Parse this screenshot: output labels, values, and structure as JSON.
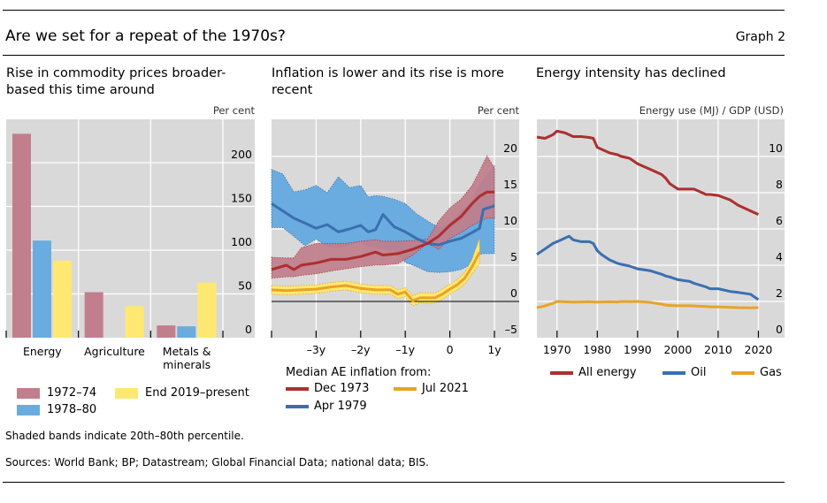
{
  "header": {
    "title": "Are we set for a repeat of the 1970s?",
    "graph_number": "Graph 2"
  },
  "footer": {
    "note": "Shaded bands indicate 20th–80th percentile.",
    "sources": "Sources: World Bank; BP; Datastream; Global Financial Data; national data; BIS."
  },
  "colors": {
    "plot_bg": "#d9d9d9",
    "pink": "#c17e8c",
    "light_blue": "#6aacdf",
    "light_yellow": "#ffe872",
    "dark_red": "#ad2f2f",
    "dark_blue": "#3a6fb0",
    "orange": "#e9a326",
    "red_band": "#c17e8c",
    "blue_band": "#6aacdf",
    "yellow_band": "#ffe872"
  },
  "chart_data": [
    {
      "type": "bar",
      "title": "Rise in commodity prices broader-based this time around",
      "title_lines": [
        "Rise in commodity prices broader-",
        "based this time around"
      ],
      "ylabel": "Per cent",
      "xlabel": "",
      "ylim": [
        0,
        230
      ],
      "yticks": [
        0,
        50,
        100,
        150,
        200
      ],
      "ytick_labels": [
        "0",
        "50",
        "100",
        "150",
        "200"
      ],
      "grid": true,
      "categories": [
        "Energy",
        "Agriculture",
        "Metals & minerals"
      ],
      "category_labels": [
        [
          "Energy"
        ],
        [
          "Agriculture"
        ],
        [
          "Metals &",
          "minerals"
        ]
      ],
      "series": [
        {
          "name": "1972–74",
          "color": "#c17e8c",
          "values": [
            233,
            52,
            14
          ]
        },
        {
          "name": "1978–80",
          "color": "#6aacdf",
          "values": [
            111,
            null,
            13
          ]
        },
        {
          "name": "End 2019–present",
          "color": "#ffe872",
          "values": [
            88,
            36,
            63
          ]
        }
      ],
      "legend": "bottom"
    },
    {
      "type": "line",
      "title": "Inflation is lower and its rise is more recent",
      "title_lines": [
        "Inflation is lower and its rise is more",
        "recent"
      ],
      "ylabel": "Per cent",
      "xlabel": "",
      "xunit": "months relative to start",
      "xlim": [
        -48,
        12
      ],
      "xticks": [
        -36,
        -24,
        -12,
        0,
        12
      ],
      "xtick_labels": [
        "–3y",
        "–2y",
        "–1y",
        "0",
        "1y"
      ],
      "ylim": [
        -5,
        23
      ],
      "yticks": [
        -5,
        0,
        5,
        10,
        15,
        20
      ],
      "ytick_labels": [
        "–5",
        "0",
        "5",
        "10",
        "15",
        "20"
      ],
      "grid": true,
      "legend_title": "Median AE inflation from:",
      "legend": "bottom",
      "series": [
        {
          "name": "Dec 1973",
          "color": "#ad2f2f",
          "band_color": "#c17e8c",
          "x": [
            -48,
            -44,
            -42,
            -40,
            -36,
            -32,
            -28,
            -24,
            -20,
            -18,
            -14,
            -10,
            -6,
            -3,
            0,
            3,
            6,
            8,
            10,
            12
          ],
          "median": [
            4.4,
            5.0,
            4.4,
            5.0,
            5.3,
            5.8,
            5.8,
            6.2,
            6.8,
            6.4,
            6.6,
            7.2,
            8.0,
            9.0,
            10.5,
            11.7,
            13.5,
            14.5,
            15.1,
            15.1
          ],
          "p20": [
            3.2,
            3.4,
            3.4,
            3.6,
            3.8,
            4.2,
            4.5,
            4.8,
            5.0,
            5.0,
            5.2,
            6.4,
            8.0,
            7.2,
            8.7,
            9.5,
            10.5,
            11.0,
            11.5,
            11.5
          ],
          "p80": [
            6.1,
            6.0,
            6.0,
            7.4,
            8.0,
            8.0,
            8.0,
            8.3,
            8.5,
            8.3,
            8.3,
            8.4,
            8.6,
            11.1,
            12.9,
            14.1,
            16.0,
            18.0,
            20.1,
            18.4
          ]
        },
        {
          "name": "Apr 1979",
          "color": "#3a6fb0",
          "band_color": "#6aacdf",
          "x": [
            -48,
            -45,
            -42,
            -39,
            -36,
            -33,
            -30,
            -27,
            -24,
            -22,
            -20,
            -18,
            -15,
            -12,
            -9,
            -6,
            -3,
            0,
            3,
            6,
            8,
            9,
            12
          ],
          "median": [
            13.5,
            12.5,
            11.5,
            10.8,
            10.1,
            10.6,
            9.6,
            10.0,
            10.5,
            9.6,
            9.9,
            12.0,
            10.3,
            9.6,
            8.7,
            8.0,
            7.8,
            8.3,
            8.7,
            9.5,
            10.1,
            12.7,
            13.2
          ],
          "p20": [
            10.2,
            10.2,
            9.0,
            7.7,
            8.6,
            7.6,
            7.4,
            7.8,
            8.3,
            7.6,
            7.5,
            7.2,
            7.1,
            5.4,
            4.8,
            4.1,
            4.0,
            4.1,
            4.4,
            5.2,
            6.5,
            6.6,
            6.6
          ],
          "p80": [
            18.2,
            17.6,
            15.1,
            15.4,
            16.0,
            15.0,
            17.2,
            15.7,
            16.0,
            14.4,
            14.6,
            14.5,
            14.1,
            13.5,
            12.1,
            11.1,
            10.2,
            10.8,
            12.5,
            13.9,
            16.0,
            16.8,
            18.7
          ]
        },
        {
          "name": "Jul 2021",
          "color": "#e9a326",
          "band_color": "#ffe872",
          "x": [
            -48,
            -44,
            -40,
            -36,
            -32,
            -28,
            -24,
            -20,
            -16,
            -14,
            -12,
            -10,
            -8,
            -6,
            -4,
            -2,
            0,
            2,
            4,
            6,
            8
          ],
          "median": [
            1.6,
            1.5,
            1.6,
            1.7,
            2.0,
            2.2,
            1.8,
            1.6,
            1.6,
            1.0,
            1.3,
            0.1,
            0.5,
            0.5,
            0.5,
            1.0,
            1.7,
            2.3,
            3.2,
            4.8,
            6.8
          ],
          "p20": [
            1.0,
            0.9,
            1.0,
            1.1,
            1.4,
            1.6,
            1.2,
            1.0,
            1.0,
            0.4,
            0.7,
            -0.6,
            -0.2,
            -0.3,
            -0.2,
            0.3,
            1.0,
            1.6,
            2.4,
            3.8,
            5.2
          ],
          "p80": [
            2.2,
            2.1,
            2.2,
            2.3,
            2.6,
            2.8,
            2.4,
            2.2,
            2.2,
            1.6,
            1.9,
            0.8,
            1.2,
            1.2,
            1.2,
            1.7,
            2.4,
            3.0,
            4.0,
            5.8,
            8.7
          ]
        }
      ]
    },
    {
      "type": "line",
      "title": "Energy intensity has declined",
      "title_lines": [
        "Energy intensity has declined"
      ],
      "ylabel": "Energy use (MJ) / GDP (USD)",
      "xlabel": "",
      "xlim": [
        1965,
        2021
      ],
      "xticks": [
        1970,
        1980,
        1990,
        2000,
        2010,
        2020
      ],
      "xtick_labels": [
        "1970",
        "1980",
        "1990",
        "2000",
        "2010",
        "2020"
      ],
      "ylim": [
        0,
        12
      ],
      "yticks": [
        0,
        2,
        4,
        6,
        8,
        10
      ],
      "ytick_labels": [
        "0",
        "2",
        "4",
        "6",
        "8",
        "10"
      ],
      "grid": true,
      "legend": "bottom",
      "x": [
        1965,
        1967,
        1969,
        1970,
        1972,
        1973,
        1974,
        1976,
        1978,
        1979,
        1980,
        1981,
        1983,
        1985,
        1986,
        1988,
        1990,
        1993,
        1996,
        1997,
        1998,
        2000,
        2003,
        2004,
        2007,
        2008,
        2010,
        2013,
        2015,
        2018,
        2020
      ],
      "series": [
        {
          "name": "All energy",
          "color": "#ad2f2f",
          "values": [
            11.07,
            11.0,
            11.2,
            11.4,
            11.3,
            11.2,
            11.1,
            11.1,
            11.05,
            11.0,
            10.5,
            10.4,
            10.2,
            10.1,
            10.0,
            9.9,
            9.6,
            9.3,
            9.0,
            8.8,
            8.5,
            8.2,
            8.2,
            8.2,
            7.9,
            7.9,
            7.85,
            7.6,
            7.3,
            7.0,
            6.8
          ]
        },
        {
          "name": "Oil",
          "color": "#3a6fb0",
          "values": [
            4.6,
            4.9,
            5.2,
            5.3,
            5.5,
            5.6,
            5.4,
            5.3,
            5.3,
            5.2,
            4.8,
            4.6,
            4.3,
            4.1,
            4.05,
            3.95,
            3.8,
            3.7,
            3.5,
            3.4,
            3.35,
            3.2,
            3.1,
            3.0,
            2.8,
            2.7,
            2.7,
            2.55,
            2.5,
            2.4,
            2.1
          ]
        },
        {
          "name": "Gas",
          "color": "#e9a326",
          "values": [
            1.66,
            1.75,
            1.9,
            2.0,
            1.98,
            1.97,
            1.96,
            1.97,
            1.98,
            1.97,
            1.96,
            1.97,
            1.98,
            1.97,
            2.0,
            1.99,
            2.0,
            1.95,
            1.85,
            1.8,
            1.78,
            1.76,
            1.76,
            1.75,
            1.72,
            1.7,
            1.7,
            1.68,
            1.66,
            1.65,
            1.66
          ]
        }
      ]
    }
  ]
}
